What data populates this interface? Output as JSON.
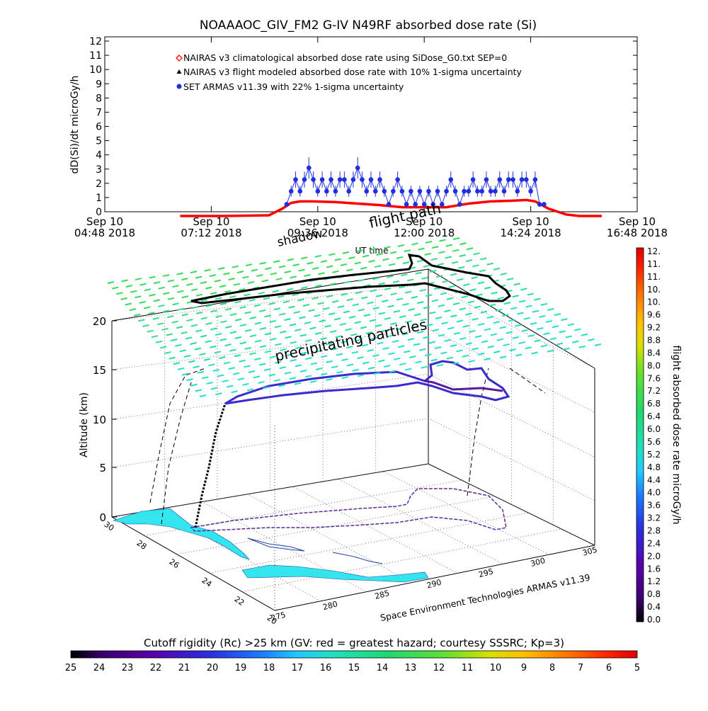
{
  "chart_data": [
    {
      "type": "line",
      "title": "NOAAAOC_GIV_FM2 G-IV   N49RF  absorbed dose rate (Si)",
      "ylabel": "dD(Si)/dt microGy/h",
      "xlabel": "UT time",
      "ylim": [
        0,
        12
      ],
      "yticks": [
        0,
        1,
        2,
        3,
        4,
        5,
        6,
        7,
        8,
        9,
        10,
        11,
        12
      ],
      "xticks": [
        {
          "top": "Sep 10",
          "bottom": "04:48 2018"
        },
        {
          "top": "Sep 10",
          "bottom": "07:12 2018"
        },
        {
          "top": "Sep 10",
          "bottom": "09:36 2018"
        },
        {
          "top": "Sep 10",
          "bottom": "12:00 2018"
        },
        {
          "top": "Sep 10",
          "bottom": "14:24 2018"
        },
        {
          "top": "Sep 10",
          "bottom": "16:48 2018"
        }
      ],
      "x_hours_range": [
        4.8,
        16.8
      ],
      "legend_placement": "top-left inside plot",
      "legend": [
        {
          "label": "NAIRAS v3 climatological absorbed dose rate using SiDose_G0.txt SEP=0",
          "color": "#ff0000",
          "marker": "diamond"
        },
        {
          "label": "NAIRAS v3 flight modeled absorbed dose rate with 10% 1-sigma uncertainty",
          "color": "#000000",
          "marker": "triangle"
        },
        {
          "label": "SET ARMAS v11.39 with 22% 1-sigma uncertainty",
          "color": "#1f2fe0",
          "marker": "dot"
        }
      ],
      "series": [
        {
          "name": "NAIRAS v3 climatological absorbed dose rate using SiDose_G0.txt SEP=0",
          "color": "#ff0000",
          "x_hours": [
            6.5,
            7.5,
            8.5,
            8.8,
            9.0,
            9.2,
            9.5,
            10.0,
            10.5,
            11.0,
            11.5,
            12.0,
            12.5,
            13.0,
            13.5,
            14.0,
            14.3,
            14.5,
            14.8,
            15.2,
            15.5,
            16.0
          ],
          "values": [
            0.0,
            0.0,
            0.05,
            0.5,
            0.9,
            1.0,
            1.0,
            0.95,
            0.85,
            0.75,
            0.6,
            0.6,
            0.6,
            0.85,
            1.0,
            1.05,
            1.1,
            1.0,
            0.5,
            0.1,
            0.0,
            0.0
          ]
        },
        {
          "name": "NAIRAS v3 flight modeled absorbed dose rate with 10% 1-sigma uncertainty",
          "color": "#000000",
          "x_hours": [
            6.5,
            7.5,
            8.5,
            8.8,
            9.0,
            9.2,
            9.5,
            10.0,
            10.5,
            11.0,
            11.5,
            12.0,
            12.5,
            13.0,
            13.5,
            14.0,
            14.3,
            14.5,
            14.8,
            15.2,
            15.5,
            16.0
          ],
          "values": [
            0.0,
            0.0,
            0.05,
            0.5,
            0.9,
            1.0,
            1.0,
            0.95,
            0.85,
            0.75,
            0.6,
            0.6,
            0.6,
            0.85,
            1.0,
            1.05,
            1.1,
            1.0,
            0.5,
            0.1,
            0.0,
            0.0
          ]
        },
        {
          "name": "SET ARMAS v11.39 with 22% 1-sigma uncertainty",
          "color": "#1f2fe0",
          "x_hours": [
            8.9,
            9.0,
            9.1,
            9.2,
            9.3,
            9.4,
            9.5,
            9.6,
            9.7,
            9.8,
            9.9,
            10.0,
            10.1,
            10.2,
            10.3,
            10.4,
            10.5,
            10.6,
            10.7,
            10.8,
            10.9,
            11.0,
            11.1,
            11.2,
            11.3,
            11.4,
            11.5,
            11.6,
            11.7,
            11.8,
            11.9,
            12.0,
            12.1,
            12.2,
            12.3,
            12.4,
            12.5,
            12.6,
            12.7,
            12.8,
            12.9,
            13.0,
            13.1,
            13.2,
            13.3,
            13.4,
            13.5,
            13.6,
            13.7,
            13.8,
            13.9,
            14.0,
            14.1,
            14.2,
            14.3,
            14.4,
            14.5,
            14.6,
            14.7
          ],
          "values": [
            0.8,
            1.7,
            2.5,
            1.7,
            2.5,
            3.3,
            2.5,
            1.7,
            2.5,
            1.7,
            2.5,
            1.7,
            2.5,
            2.5,
            1.7,
            2.5,
            3.3,
            2.5,
            1.7,
            2.5,
            1.7,
            2.5,
            1.7,
            0.8,
            1.7,
            2.5,
            1.7,
            0.8,
            1.7,
            0.8,
            1.7,
            0.8,
            1.7,
            0.8,
            1.7,
            0.8,
            1.7,
            2.5,
            1.7,
            0.8,
            1.7,
            1.7,
            2.5,
            1.7,
            1.7,
            2.5,
            1.7,
            1.7,
            2.5,
            1.7,
            2.5,
            2.5,
            1.7,
            2.5,
            2.5,
            1.7,
            2.5,
            0.8,
            0.8
          ]
        }
      ]
    },
    {
      "type": "scatter",
      "labels": {
        "shadow": "shadow",
        "flightpath": "flight path",
        "precip": "precipitating particles",
        "ylabel": "Altitude (km)",
        "credit": "Space Environment Technologies ARMAS v11.39"
      },
      "zticks": [
        "0",
        "5",
        "10",
        "15",
        "20"
      ],
      "lat_ticks": [
        "30",
        "28",
        "26",
        "24",
        "22",
        "20"
      ],
      "lon_ticks": [
        "275",
        "280",
        "285",
        "290",
        "295",
        "300",
        "305"
      ],
      "zlim": [
        0,
        20
      ],
      "colorbar": {
        "title": "flight absorbed dose rate microGy/h",
        "ticks": [
          "12.",
          "11.",
          "11.",
          "10.",
          "10.",
          "9.6",
          "9.2",
          "8.8",
          "8.4",
          "8.0",
          "7.6",
          "7.2",
          "6.8",
          "6.4",
          "6.0",
          "5.6",
          "5.2",
          "4.8",
          "4.4",
          "4.0",
          "3.6",
          "3.2",
          "2.8",
          "2.4",
          "2.0",
          "1.6",
          "1.2",
          "0.8",
          "0.4",
          "0.0"
        ],
        "range": [
          0,
          12
        ]
      }
    },
    {
      "type": "heatmap",
      "title": "Cutoff rigidity (Rc) >25 km (GV: red = greatest hazard; courtesy SSSRC; Kp=3)",
      "ticks": [
        "25",
        "24",
        "23",
        "22",
        "21",
        "20",
        "19",
        "18",
        "17",
        "16",
        "15",
        "14",
        "13",
        "12",
        "11",
        "10",
        "9",
        "8",
        "7",
        "6",
        "5"
      ],
      "range": [
        25,
        5
      ]
    }
  ],
  "colors": {
    "climatological": "#ff0000",
    "modeled": "#000000",
    "armas": "#1f2fe0",
    "cutoff_grid": "#33cc66",
    "land": "#33e6ee"
  }
}
